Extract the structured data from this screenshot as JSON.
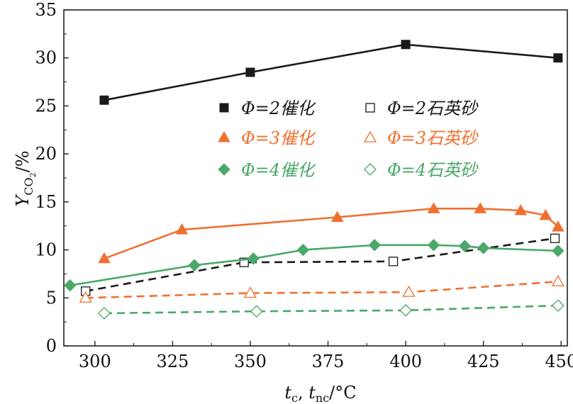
{
  "chart_data": {
    "type": "line",
    "xlabel": "t_c, t_nc/°C",
    "xlabel_parts": {
      "t1": "t",
      "sub1": "c",
      "sep": ", ",
      "t2": "t",
      "sub2": "nc",
      "unit": "/°C"
    },
    "ylabel": "Y_CO2/%",
    "ylabel_parts": {
      "main": "Y",
      "sub": "CO",
      "subsub": "2",
      "unit": "/%"
    },
    "xlim": [
      290,
      452
    ],
    "ylim": [
      0,
      35
    ],
    "x_ticks": [
      "300",
      "325",
      "350",
      "375",
      "400",
      "425",
      "450"
    ],
    "y_ticks": [
      "0",
      "5",
      "10",
      "15",
      "20",
      "25",
      "30",
      "35"
    ],
    "grid": false,
    "legend_position": "upper-middle",
    "series": [
      {
        "name": "Φ=2催化",
        "color": "#1a1a1a",
        "marker": "square",
        "filled": true,
        "dash": "solid",
        "x": [
          303,
          350,
          400,
          449
        ],
        "y": [
          25.6,
          28.5,
          31.4,
          30.0
        ]
      },
      {
        "name": "Φ=2石英砂",
        "color": "#1a1a1a",
        "marker": "square",
        "filled": false,
        "dash": "dashed",
        "x": [
          297,
          348,
          396,
          448
        ],
        "y": [
          5.7,
          8.7,
          8.8,
          11.2
        ]
      },
      {
        "name": "Φ=3催化",
        "color": "#f07030",
        "marker": "triangle",
        "filled": true,
        "dash": "solid",
        "x": [
          303,
          328,
          378,
          409,
          424,
          437,
          445,
          449
        ],
        "y": [
          9.1,
          12.1,
          13.4,
          14.3,
          14.3,
          14.1,
          13.6,
          12.4
        ]
      },
      {
        "name": "Φ=3石英砂",
        "color": "#f07030",
        "marker": "triangle",
        "filled": false,
        "dash": "dashed",
        "x": [
          297,
          350,
          401,
          449
        ],
        "y": [
          5.0,
          5.5,
          5.6,
          6.7
        ]
      },
      {
        "name": "Φ=4催化",
        "color": "#4aa869",
        "marker": "diamond",
        "filled": true,
        "dash": "solid",
        "x": [
          292,
          332,
          351,
          367,
          390,
          409,
          419,
          425,
          449
        ],
        "y": [
          6.3,
          8.4,
          9.1,
          10.0,
          10.5,
          10.5,
          10.4,
          10.2,
          9.9
        ]
      },
      {
        "name": "Φ=4石英砂",
        "color": "#4aa869",
        "marker": "diamond",
        "filled": false,
        "dash": "dashed",
        "x": [
          303,
          352,
          400,
          449
        ],
        "y": [
          3.4,
          3.6,
          3.7,
          4.2
        ]
      }
    ]
  }
}
